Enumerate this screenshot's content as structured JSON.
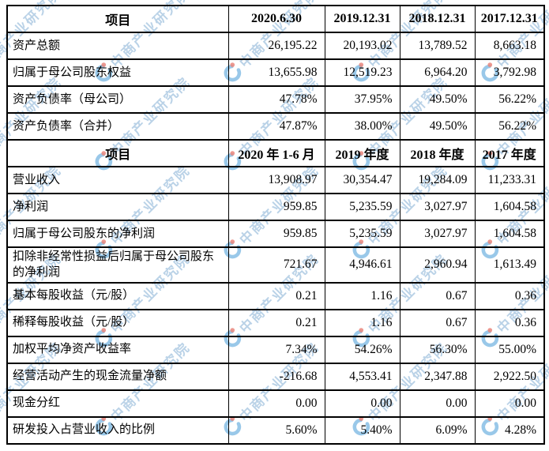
{
  "watermark": {
    "text": "中商产业研究院",
    "logo": "crescent-swoosh-with-dot",
    "text_color": "#a9c8e2",
    "logo_blue": "#6aaede",
    "logo_red": "#e4695c"
  },
  "table": {
    "sections": [
      {
        "header": [
          "项目",
          "2020.6.30",
          "2019.12.31",
          "2018.12.31",
          "2017.12.31"
        ],
        "rows": [
          {
            "label": "资产总额",
            "values": [
              "26,195.22",
              "20,193.02",
              "13,789.52",
              "8,663.18"
            ]
          },
          {
            "label": "归属于母公司股东权益",
            "values": [
              "13,655.98",
              "12,519.23",
              "6,964.20",
              "3,792.98"
            ]
          },
          {
            "label": "资产负债率（母公司）",
            "values": [
              "47.78%",
              "37.95%",
              "49.50%",
              "56.22%"
            ]
          },
          {
            "label": "资产负债率（合并）",
            "values": [
              "47.87%",
              "38.00%",
              "49.50%",
              "56.22%"
            ]
          }
        ]
      },
      {
        "header": [
          "项目",
          "2020 年 1-6 月",
          "2019 年度",
          "2018 年度",
          "2017 年度"
        ],
        "rows": [
          {
            "label": "营业收入",
            "values": [
              "13,908.97",
              "30,354.47",
              "19,284.09",
              "11,233.31"
            ]
          },
          {
            "label": "净利润",
            "values": [
              "959.85",
              "5,235.59",
              "3,027.97",
              "1,604.58"
            ]
          },
          {
            "label": "归属于母公司股东的净利润",
            "values": [
              "959.85",
              "5,235.59",
              "3,027.97",
              "1,604.58"
            ]
          },
          {
            "label": "扣除非经常性损益后归属于母公司股东的净利润",
            "values": [
              "721.67",
              "4,946.61",
              "2,960.94",
              "1,613.49"
            ]
          },
          {
            "label": "基本每股收益（元/股）",
            "values": [
              "0.21",
              "1.16",
              "0.67",
              "0.36"
            ]
          },
          {
            "label": "稀释每股收益（元/股）",
            "values": [
              "0.21",
              "1.16",
              "0.67",
              "0.36"
            ]
          },
          {
            "label": "加权平均净资产收益率",
            "values": [
              "7.34%",
              "54.26%",
              "56.30%",
              "55.00%"
            ]
          },
          {
            "label": "经营活动产生的现金流量净额",
            "values": [
              "-216.68",
              "4,553.41",
              "2,347.88",
              "2,922.50"
            ]
          },
          {
            "label": "现金分红",
            "values": [
              "0.00",
              "0.00",
              "0.00",
              "0.00"
            ]
          },
          {
            "label": "研发投入占营业收入的比例",
            "values": [
              "5.60%",
              "5.40%",
              "6.09%",
              "4.28%"
            ]
          }
        ]
      }
    ]
  }
}
